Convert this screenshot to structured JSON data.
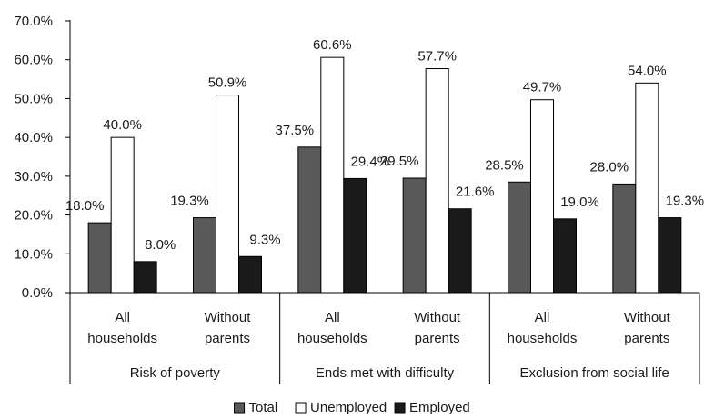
{
  "chart_data": {
    "type": "bar",
    "groups": [
      "Risk of poverty",
      "Ends met with difficulty",
      "Exclusion from social life"
    ],
    "categories": [
      "All households",
      "Without parents",
      "All households",
      "Without parents",
      "All households",
      "Without parents"
    ],
    "category_lines": [
      [
        "All",
        "households"
      ],
      [
        "Without",
        "parents"
      ],
      [
        "All",
        "households"
      ],
      [
        "Without",
        "parents"
      ],
      [
        "All",
        "households"
      ],
      [
        "Without",
        "parents"
      ]
    ],
    "series": [
      {
        "name": "Total",
        "color": "#595959",
        "values": [
          18.0,
          19.3,
          37.5,
          29.5,
          28.5,
          28.0
        ],
        "labels": [
          "18.0%",
          "19.3%",
          "37.5%",
          "29.5%",
          "28.5%",
          "28.0%"
        ]
      },
      {
        "name": "Unemployed",
        "color": "#ffffff",
        "values": [
          40.0,
          50.9,
          60.6,
          57.7,
          49.7,
          54.0
        ],
        "labels": [
          "40.0%",
          "50.9%",
          "60.6%",
          "57.7%",
          "49.7%",
          "54.0%"
        ]
      },
      {
        "name": "Employed",
        "color": "#1a1a1a",
        "values": [
          8.0,
          9.3,
          29.4,
          21.6,
          19.0,
          19.3
        ],
        "labels": [
          "8.0%",
          "9.3%",
          "29.4%",
          "21.6%",
          "19.0%",
          "19.3%"
        ]
      }
    ],
    "ylim": [
      0,
      70
    ],
    "yticks": [
      0,
      10,
      20,
      30,
      40,
      50,
      60,
      70
    ],
    "ytick_labels": [
      "0.0%",
      "10.0%",
      "20.0%",
      "30.0%",
      "40.0%",
      "50.0%",
      "60.0%",
      "70.0%"
    ],
    "grid": false,
    "legend": "bottom-center",
    "title": "",
    "xlabel": "",
    "ylabel": ""
  }
}
